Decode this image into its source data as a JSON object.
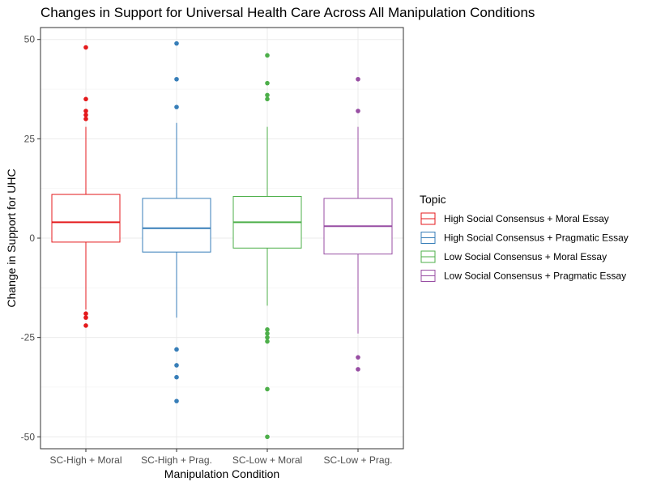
{
  "chart_data": {
    "type": "boxplot",
    "title": "Changes in Support for Universal Health Care Across All Manipulation Conditions",
    "xlabel": "Manipulation Condition",
    "ylabel": "Change in Support for UHC",
    "ylim": [
      -53,
      53
    ],
    "yticks": [
      -50,
      -25,
      0,
      25,
      50
    ],
    "grid": true,
    "legend_position": "right",
    "legend_title": "Topic",
    "categories": [
      "SC-High + Moral",
      "SC-High + Prag.",
      "SC-Low + Moral",
      "SC-Low + Prag."
    ],
    "series": [
      {
        "name": "High Social Consensus + Moral Essay",
        "color": "#e41a1c",
        "category": "SC-High + Moral",
        "q1": -1,
        "median": 4,
        "q3": 11,
        "whisker_low": -18,
        "whisker_high": 28,
        "outliers": [
          48,
          35,
          32,
          31,
          30,
          -19,
          -20,
          -22
        ]
      },
      {
        "name": "High Social Consensus + Pragmatic Essay",
        "color": "#377eb8",
        "category": "SC-High + Prag.",
        "q1": -3.5,
        "median": 2.5,
        "q3": 10,
        "whisker_low": -20,
        "whisker_high": 29,
        "outliers": [
          49,
          40,
          33,
          -28,
          -32,
          -35,
          -41
        ]
      },
      {
        "name": "Low Social Consensus + Moral Essay",
        "color": "#4daf4a",
        "category": "SC-Low + Moral",
        "q1": -2.5,
        "median": 4,
        "q3": 10.5,
        "whisker_low": -17,
        "whisker_high": 28,
        "outliers": [
          46,
          39,
          36,
          35,
          -23,
          -24,
          -25,
          -26,
          -38,
          -50
        ]
      },
      {
        "name": "Low Social Consensus + Pragmatic Essay",
        "color": "#984ea3",
        "category": "SC-Low + Prag.",
        "q1": -4,
        "median": 3,
        "q3": 10,
        "whisker_low": -24,
        "whisker_high": 28,
        "outliers": [
          40,
          32,
          -30,
          -33
        ]
      }
    ]
  }
}
